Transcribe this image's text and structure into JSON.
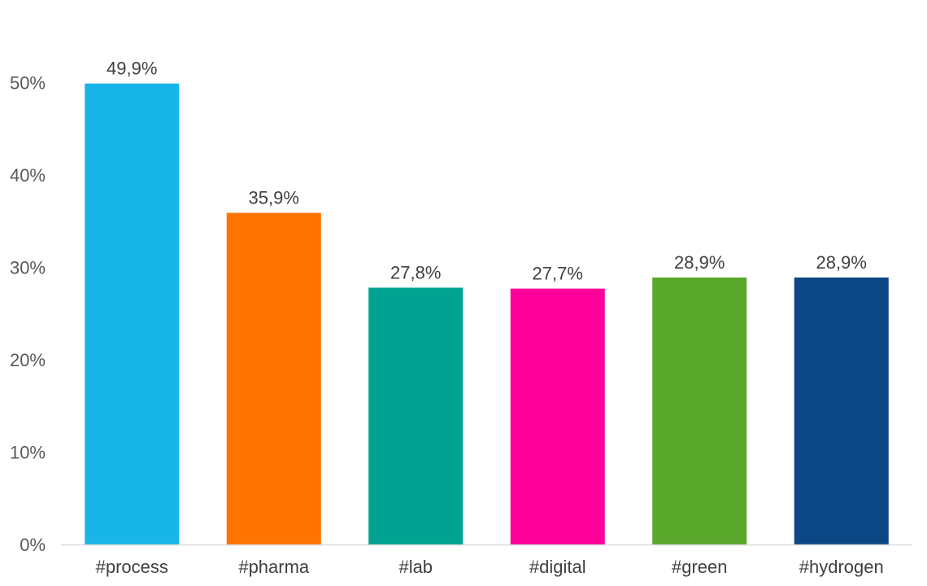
{
  "chart_data": {
    "type": "bar",
    "categories": [
      "#process",
      "#pharma",
      "#lab",
      "#digital",
      "#green",
      "#hydrogen"
    ],
    "values": [
      49.9,
      35.9,
      27.8,
      27.7,
      28.9,
      28.9
    ],
    "data_labels": [
      "49,9%",
      "35,9%",
      "27,8%",
      "27,7%",
      "28,9%",
      "28,9%"
    ],
    "colors": [
      "#17b5e8",
      "#ff7300",
      "#00a391",
      "#ff009a",
      "#5aa82b",
      "#0b4785"
    ],
    "ylim": [
      0,
      50
    ],
    "yticks": [
      0,
      10,
      20,
      30,
      40,
      50
    ],
    "ytick_labels": [
      "0%",
      "10%",
      "20%",
      "30%",
      "40%",
      "50%"
    ],
    "title": "",
    "xlabel": "",
    "ylabel": "",
    "grid": false,
    "legend": "none"
  }
}
